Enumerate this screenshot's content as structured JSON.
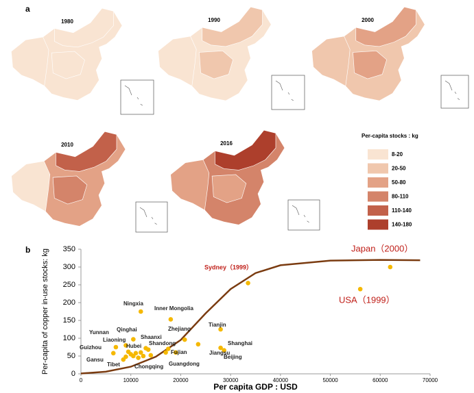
{
  "panel_a": {
    "label": "a",
    "map_years": [
      "1980",
      "1990",
      "2000",
      "2010",
      "2016"
    ],
    "legend": {
      "title": "Per-capita stocks : kg",
      "items": [
        {
          "label": "8-20",
          "color": "#f9e4d2"
        },
        {
          "label": "20-50",
          "color": "#f0c7ad"
        },
        {
          "label": "50-80",
          "color": "#e3a286"
        },
        {
          "label": "80-110",
          "color": "#d4846a"
        },
        {
          "label": "110-140",
          "color": "#c2614a"
        },
        {
          "label": "140-180",
          "color": "#ad3f2c"
        }
      ]
    }
  },
  "chart_data": {
    "type": "scatter",
    "panel_label": "b",
    "x_label": "Per capita GDP : USD",
    "y_label": "Per-capita of copper in-use stocks: kg",
    "xlim": [
      0,
      70000
    ],
    "xticks": [
      0,
      10000,
      20000,
      30000,
      40000,
      50000,
      60000,
      70000
    ],
    "ylim": [
      0,
      350
    ],
    "yticks": [
      0,
      50,
      100,
      150,
      200,
      250,
      300,
      350
    ],
    "series": [
      {
        "color": "#f5b800",
        "x": [
          62000,
          56000,
          33500,
          12000,
          18000,
          28000,
          20800,
          23500,
          28000,
          28700,
          10500,
          13500,
          17500,
          19000,
          17000,
          12000,
          9000,
          7000,
          6500,
          8500,
          9000,
          12500,
          10000,
          10500,
          11000,
          9500,
          14000,
          11500,
          13000
        ],
        "values": [
          300,
          238,
          255,
          175,
          153,
          125,
          96,
          83,
          73,
          66,
          97,
          68,
          70,
          60,
          60,
          60,
          80,
          75,
          58,
          40,
          48,
          50,
          55,
          50,
          58,
          62,
          52,
          45,
          72
        ]
      },
      {
        "color": "#7a3b10",
        "style": "line",
        "x": [
          0,
          5000,
          10000,
          15000,
          20000,
          25000,
          30000,
          35000,
          40000,
          50000,
          60000,
          68000
        ],
        "values": [
          1,
          6,
          20,
          48,
          95,
          170,
          238,
          283,
          305,
          318,
          320,
          319
        ]
      }
    ],
    "annotations": [
      {
        "text": "Japan（2000）",
        "color": "#c0201a"
      },
      {
        "text": "USA（1999）",
        "color": "#c0201a"
      },
      {
        "text": "Sydney（1999）",
        "color": "#c0201a"
      },
      {
        "text": "Ningxia",
        "color": "#222"
      },
      {
        "text": "Inner Mongolia",
        "color": "#222"
      },
      {
        "text": "Tianjin",
        "color": "#222"
      },
      {
        "text": "Zhejiang",
        "color": "#222"
      },
      {
        "text": "Jiangsu",
        "color": "#222"
      },
      {
        "text": "Shanghai",
        "color": "#222"
      },
      {
        "text": "Beijing",
        "color": "#222"
      },
      {
        "text": "Qinghai",
        "color": "#222"
      },
      {
        "text": "Shaanxi",
        "color": "#222"
      },
      {
        "text": "Shandong",
        "color": "#222"
      },
      {
        "text": "Fujian",
        "color": "#222"
      },
      {
        "text": "Guangdong",
        "color": "#222"
      },
      {
        "text": "Hubei",
        "color": "#222"
      },
      {
        "text": "Liaoning",
        "color": "#222"
      },
      {
        "text": "Yunnan",
        "color": "#222"
      },
      {
        "text": "Guizhou",
        "color": "#222"
      },
      {
        "text": "Gansu",
        "color": "#222"
      },
      {
        "text": "Tibet",
        "color": "#222"
      },
      {
        "text": "Chongqing",
        "color": "#222"
      }
    ]
  }
}
